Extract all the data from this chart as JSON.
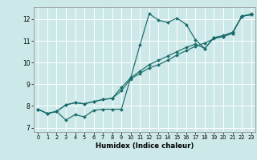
{
  "xlabel": "Humidex (Indice chaleur)",
  "xlim": [
    -0.5,
    23.5
  ],
  "ylim": [
    6.8,
    12.55
  ],
  "yticks": [
    7,
    8,
    9,
    10,
    11,
    12
  ],
  "xticks": [
    0,
    1,
    2,
    3,
    4,
    5,
    6,
    7,
    8,
    9,
    10,
    11,
    12,
    13,
    14,
    15,
    16,
    17,
    18,
    19,
    20,
    21,
    22,
    23
  ],
  "bg_color": "#cde8e8",
  "line_color": "#1a6b6b",
  "grid_color": "#ffffff",
  "line1_x": [
    0,
    1,
    2,
    3,
    4,
    5,
    6,
    7,
    8,
    9,
    10,
    11,
    12,
    13,
    14,
    15,
    16,
    17,
    18,
    19,
    20,
    21,
    22,
    23
  ],
  "line1_y": [
    7.85,
    7.65,
    7.75,
    7.35,
    7.6,
    7.5,
    7.8,
    7.85,
    7.85,
    7.85,
    9.3,
    10.8,
    12.25,
    11.95,
    11.85,
    12.05,
    11.75,
    11.05,
    10.65,
    11.15,
    11.2,
    11.35,
    12.15,
    12.2
  ],
  "line2_x": [
    0,
    1,
    2,
    3,
    4,
    5,
    6,
    7,
    8,
    9,
    10,
    11,
    12,
    13,
    14,
    15,
    16,
    17,
    18,
    19,
    20,
    21,
    22,
    23
  ],
  "line2_y": [
    7.85,
    7.65,
    7.75,
    8.05,
    8.15,
    8.1,
    8.2,
    8.3,
    8.35,
    8.7,
    9.25,
    9.5,
    9.75,
    9.9,
    10.1,
    10.35,
    10.55,
    10.75,
    10.9,
    11.1,
    11.2,
    11.35,
    12.15,
    12.2
  ],
  "line3_x": [
    0,
    1,
    2,
    3,
    4,
    5,
    6,
    7,
    8,
    9,
    10,
    11,
    12,
    13,
    14,
    15,
    16,
    17,
    18,
    19,
    20,
    21,
    22,
    23
  ],
  "line3_y": [
    7.85,
    7.65,
    7.75,
    8.05,
    8.15,
    8.1,
    8.2,
    8.3,
    8.35,
    8.85,
    9.3,
    9.6,
    9.9,
    10.1,
    10.3,
    10.5,
    10.7,
    10.85,
    10.65,
    11.15,
    11.25,
    11.4,
    12.1,
    12.25
  ]
}
